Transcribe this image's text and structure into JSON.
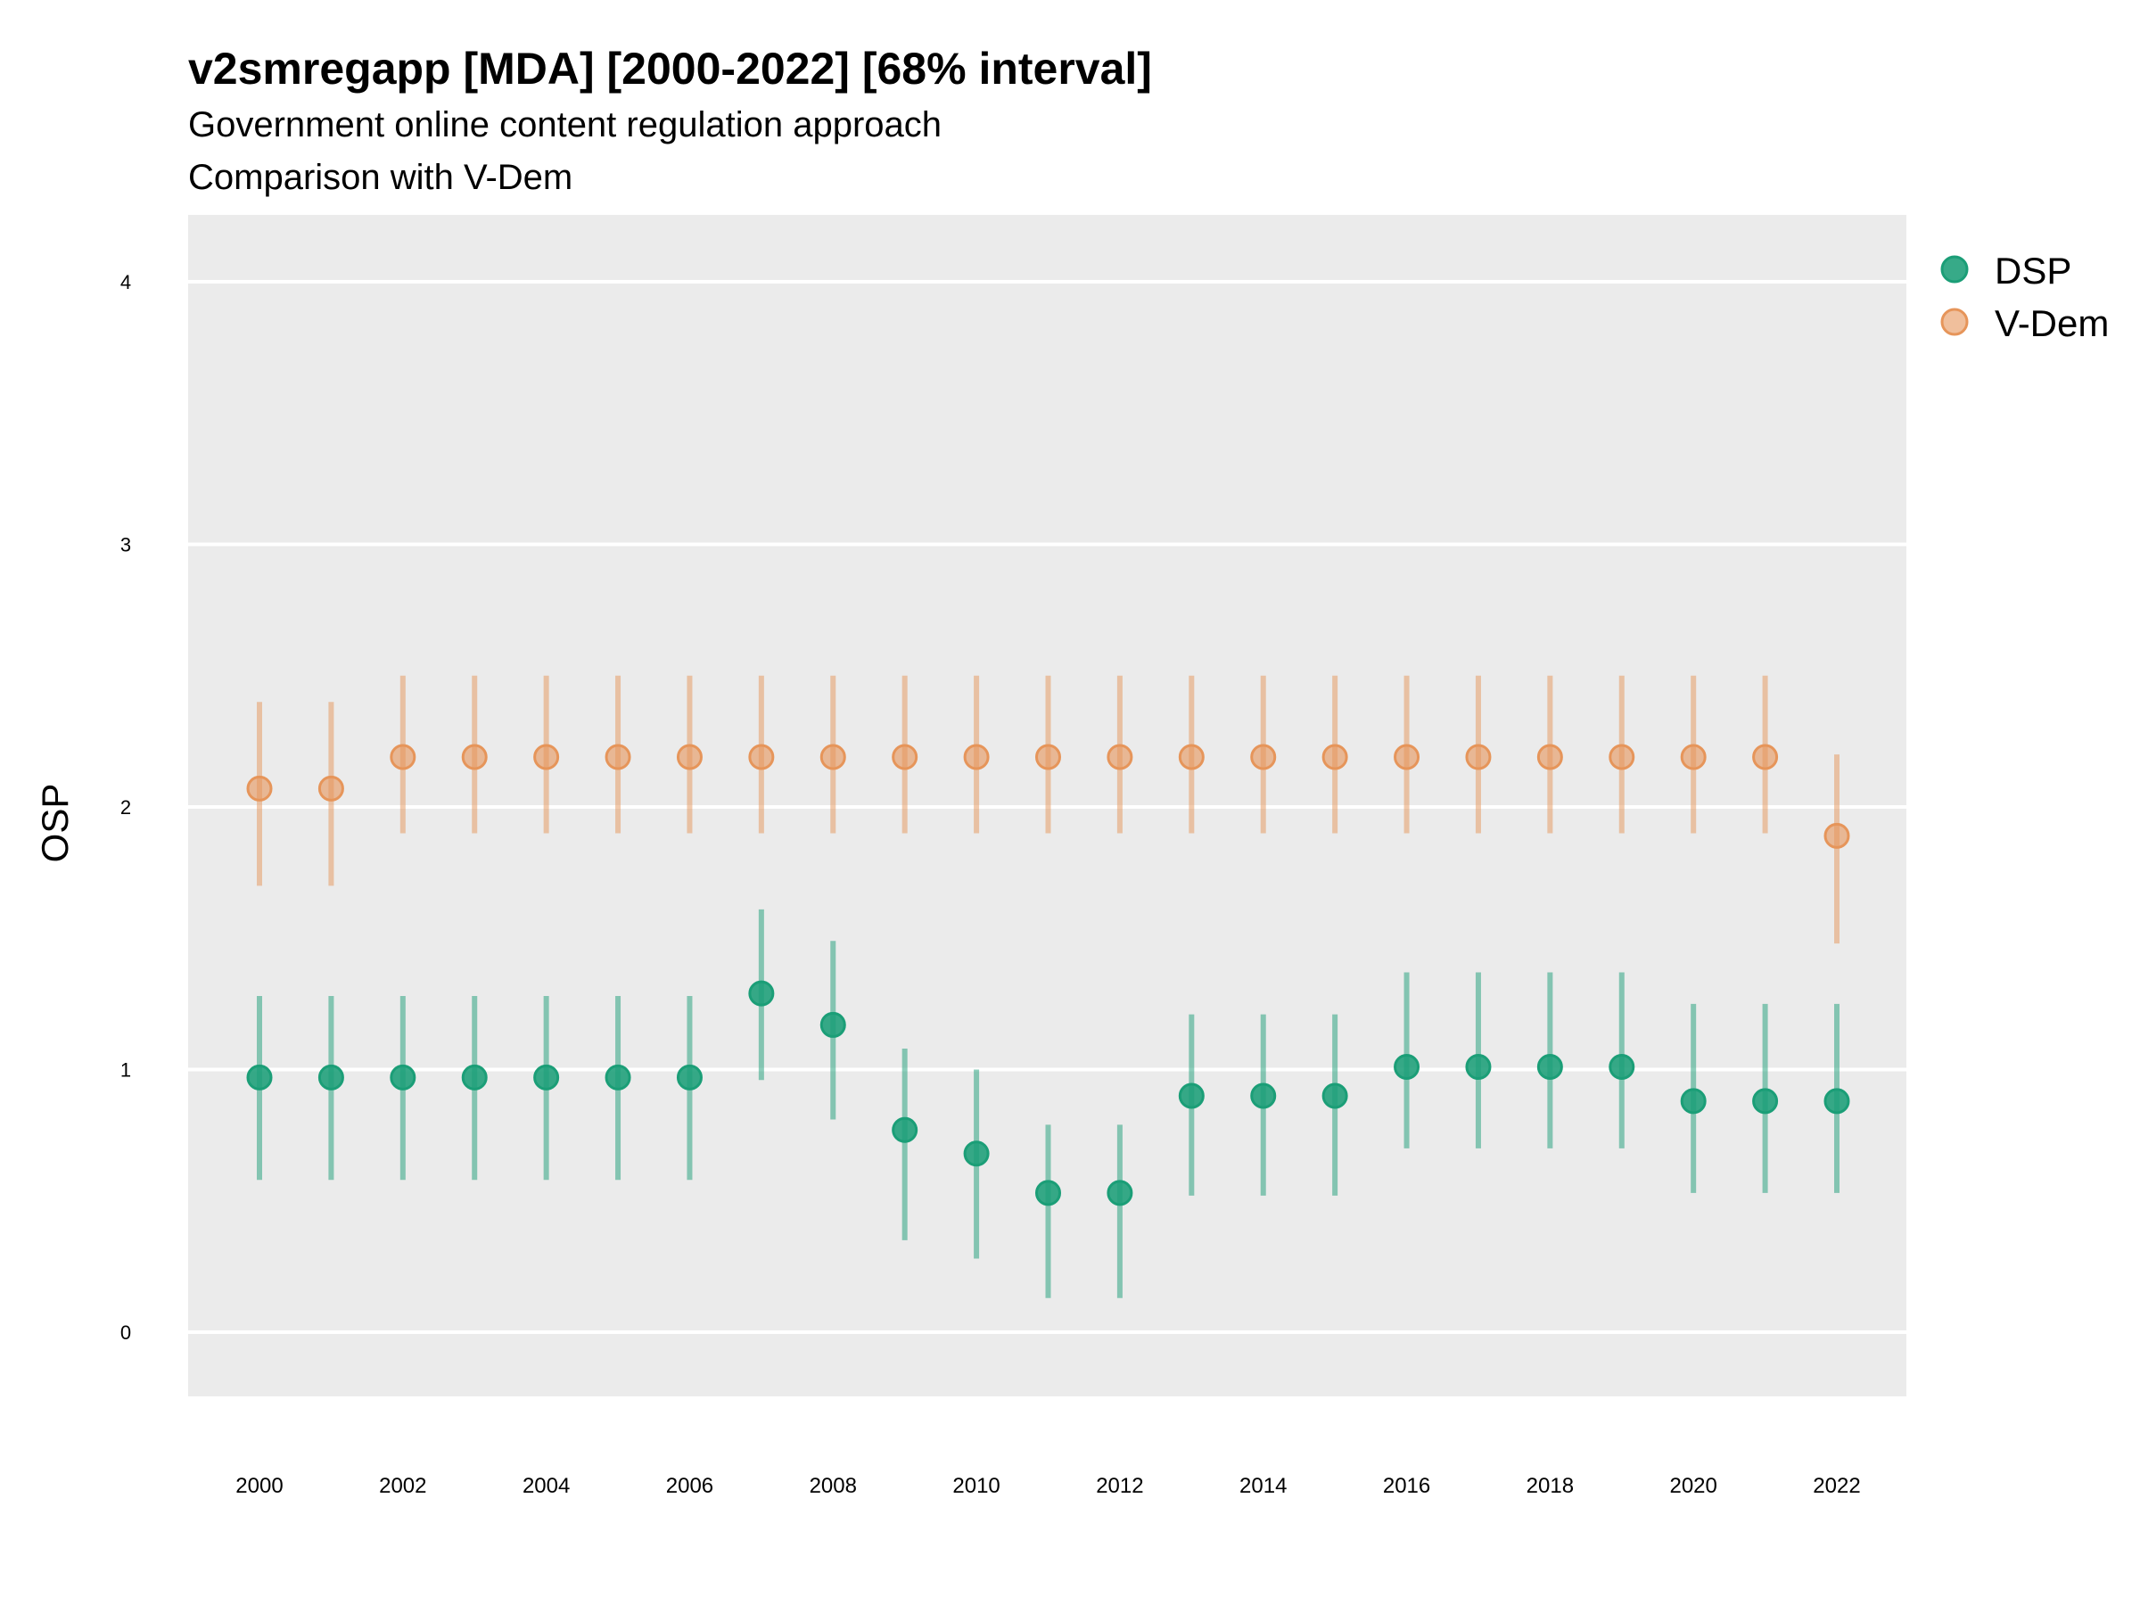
{
  "chart_data": {
    "type": "scatter",
    "title": "v2smregapp [MDA] [2000-2022] [68% interval]",
    "subtitle": "Government online content regulation approach",
    "subtitle2": "Comparison with V-Dem",
    "xlabel": "",
    "ylabel": "OSP",
    "ylim": [
      -0.25,
      4.25
    ],
    "yticks": [
      "0",
      "1",
      "2",
      "3",
      "4"
    ],
    "xticks": [
      "2000",
      "2002",
      "2004",
      "2006",
      "2008",
      "2010",
      "2012",
      "2014",
      "2016",
      "2018",
      "2020",
      "2022"
    ],
    "x": [
      2000,
      2001,
      2002,
      2003,
      2004,
      2005,
      2006,
      2007,
      2008,
      2009,
      2010,
      2011,
      2012,
      2013,
      2014,
      2015,
      2016,
      2017,
      2018,
      2019,
      2020,
      2021,
      2022
    ],
    "grid": true,
    "legend_position": "right",
    "series": [
      {
        "name": "DSP",
        "color": "#1b9e77",
        "values": [
          0.97,
          0.97,
          0.97,
          0.97,
          0.97,
          0.97,
          0.97,
          1.29,
          1.17,
          0.77,
          0.68,
          0.53,
          0.53,
          0.9,
          0.9,
          0.9,
          1.01,
          1.01,
          1.01,
          1.01,
          0.88,
          0.88,
          0.88
        ],
        "lower": [
          0.58,
          0.58,
          0.58,
          0.58,
          0.58,
          0.58,
          0.58,
          0.96,
          0.81,
          0.35,
          0.28,
          0.13,
          0.13,
          0.52,
          0.52,
          0.52,
          0.7,
          0.7,
          0.7,
          0.7,
          0.53,
          0.53,
          0.53
        ],
        "upper": [
          1.28,
          1.28,
          1.28,
          1.28,
          1.28,
          1.28,
          1.28,
          1.61,
          1.49,
          1.08,
          1.0,
          0.79,
          0.79,
          1.21,
          1.21,
          1.21,
          1.37,
          1.37,
          1.37,
          1.37,
          1.25,
          1.25,
          1.25
        ]
      },
      {
        "name": "V-Dem",
        "color": "#e6955a",
        "values": [
          2.07,
          2.07,
          2.19,
          2.19,
          2.19,
          2.19,
          2.19,
          2.19,
          2.19,
          2.19,
          2.19,
          2.19,
          2.19,
          2.19,
          2.19,
          2.19,
          2.19,
          2.19,
          2.19,
          2.19,
          2.19,
          2.19,
          1.89
        ],
        "lower": [
          1.7,
          1.7,
          1.9,
          1.9,
          1.9,
          1.9,
          1.9,
          1.9,
          1.9,
          1.9,
          1.9,
          1.9,
          1.9,
          1.9,
          1.9,
          1.9,
          1.9,
          1.9,
          1.9,
          1.9,
          1.9,
          1.9,
          1.48
        ],
        "upper": [
          2.4,
          2.4,
          2.5,
          2.5,
          2.5,
          2.5,
          2.5,
          2.5,
          2.5,
          2.5,
          2.5,
          2.5,
          2.5,
          2.5,
          2.5,
          2.5,
          2.5,
          2.5,
          2.5,
          2.5,
          2.5,
          2.5,
          2.2
        ]
      }
    ]
  }
}
